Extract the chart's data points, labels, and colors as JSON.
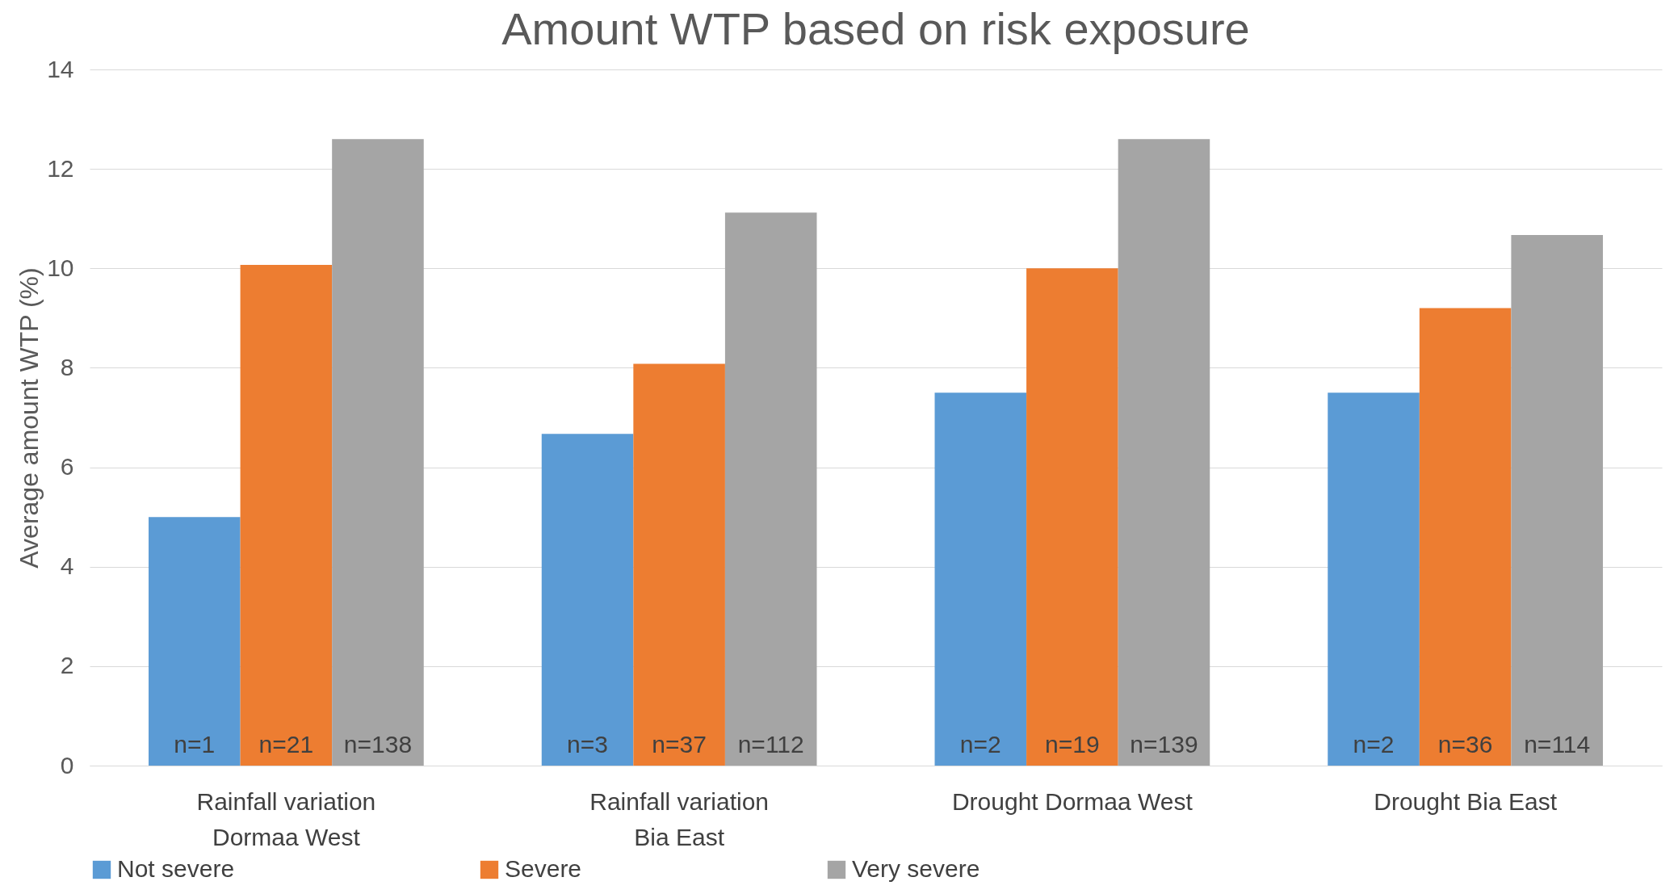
{
  "chart_data": {
    "type": "bar",
    "title": "Amount WTP based on risk exposure",
    "ylabel": "Average amount WTP (%)",
    "categories": [
      "Rainfall variation Dormaa West",
      "Rainfall variation Bia East",
      "Drought Dormaa West",
      "Drought Bia East"
    ],
    "series": [
      {
        "name": "Not severe",
        "color": "#5b9bd5",
        "values": [
          5.0,
          6.67,
          7.5,
          7.5
        ]
      },
      {
        "name": "Severe",
        "color": "#ed7d31",
        "values": [
          10.07,
          8.08,
          10.0,
          9.2
        ]
      },
      {
        "name": "Very severe",
        "color": "#a5a5a5",
        "values": [
          12.6,
          11.12,
          12.6,
          10.67
        ]
      }
    ],
    "annotations": [
      {
        "text": "n=1",
        "x": "Rainfall variation Dormaa West",
        "y": 0
      },
      {
        "text": "n=21",
        "x": "Rainfall variation Dormaa West",
        "y": 0
      },
      {
        "text": "n=138",
        "x": "Rainfall variation Dormaa West",
        "y": 0
      },
      {
        "text": "n=3",
        "x": "Rainfall variation Bia East",
        "y": 0
      },
      {
        "text": "n=37",
        "x": "Rainfall variation Bia East",
        "y": 0
      },
      {
        "text": "n=112",
        "x": "Rainfall variation Bia East",
        "y": 0
      },
      {
        "text": "n=2",
        "x": "Drought Dormaa West",
        "y": 0
      },
      {
        "text": "n=19",
        "x": "Drought Dormaa West",
        "y": 0
      },
      {
        "text": "n=139",
        "x": "Drought Dormaa West",
        "y": 0
      },
      {
        "text": "n=2",
        "x": "Drought Bia East",
        "y": 0
      },
      {
        "text": "n=36",
        "x": "Drought Bia East",
        "y": 0
      },
      {
        "text": "n=114",
        "x": "Drought Bia East",
        "y": 0
      }
    ],
    "ylim": [
      0,
      14
    ],
    "yticks": [
      0,
      2,
      4,
      6,
      8,
      10,
      12,
      14
    ],
    "grid": "y",
    "legend": "bottom"
  }
}
